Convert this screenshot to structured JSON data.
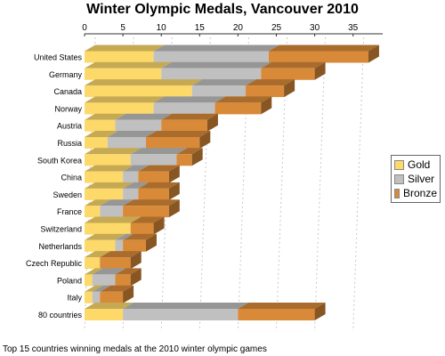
{
  "chart_data": {
    "type": "bar",
    "orientation": "horizontal",
    "stacked": true,
    "style": "3d",
    "title": "Winter Olympic Medals, Vancouver 2010",
    "caption": "Top 15 countries winning medals at the 2010 winter olympic games",
    "categories": [
      "United States",
      "Germany",
      "Canada",
      "Norway",
      "Austria",
      "Russia",
      "South Korea",
      "China",
      "Sweden",
      "France",
      "Switzerland",
      "Netherlands",
      "Czech Republic",
      "Poland",
      "Italy",
      "80 countries"
    ],
    "series": [
      {
        "name": "Gold",
        "color": "#fdd96a",
        "values": [
          9,
          10,
          14,
          9,
          4,
          3,
          6,
          5,
          5,
          2,
          6,
          4,
          2,
          1,
          1,
          5
        ]
      },
      {
        "name": "Silver",
        "color": "#c0c0c0",
        "values": [
          15,
          13,
          7,
          8,
          6,
          5,
          6,
          2,
          2,
          3,
          0,
          1,
          0,
          3,
          1,
          15
        ]
      },
      {
        "name": "Bronze",
        "color": "#d98a38",
        "values": [
          13,
          7,
          5,
          6,
          6,
          7,
          2,
          4,
          4,
          6,
          3,
          3,
          4,
          2,
          3,
          10
        ]
      }
    ],
    "xlim": [
      0,
      38
    ],
    "xticks": [
      0,
      5,
      10,
      15,
      20,
      25,
      30,
      35
    ],
    "grid": true,
    "legend": "right"
  }
}
